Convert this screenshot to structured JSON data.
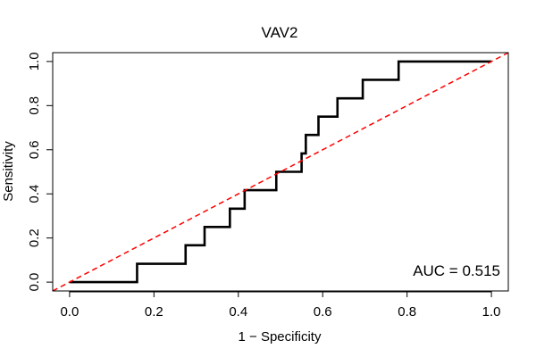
{
  "chart_data": {
    "type": "line",
    "title": "VAV2",
    "xlabel": "1 − Specificity",
    "ylabel": "Sensitivity",
    "xlim": [
      -0.04,
      1.04
    ],
    "ylim": [
      -0.04,
      1.04
    ],
    "x_ticks": [
      0.0,
      0.2,
      0.4,
      0.6,
      0.8,
      1.0
    ],
    "x_tick_labels": [
      "0.0",
      "0.2",
      "0.4",
      "0.6",
      "0.8",
      "1.0"
    ],
    "y_ticks": [
      0.0,
      0.2,
      0.4,
      0.6,
      0.8,
      1.0
    ],
    "y_tick_labels": [
      "0.0",
      "0.2",
      "0.4",
      "0.6",
      "0.8",
      "1.0"
    ],
    "grid": false,
    "annotation": "AUC = 0.515",
    "series": [
      {
        "style": "step",
        "color": "#000000",
        "x": [
          0.0,
          0.16,
          0.16,
          0.275,
          0.275,
          0.32,
          0.32,
          0.38,
          0.38,
          0.415,
          0.415,
          0.49,
          0.49,
          0.55,
          0.55,
          0.56,
          0.56,
          0.59,
          0.59,
          0.635,
          0.635,
          0.695,
          0.695,
          0.78,
          0.78,
          1.0
        ],
        "y": [
          0.0,
          0.0,
          0.083,
          0.083,
          0.167,
          0.167,
          0.25,
          0.25,
          0.333,
          0.333,
          0.417,
          0.417,
          0.5,
          0.5,
          0.583,
          0.583,
          0.667,
          0.667,
          0.75,
          0.75,
          0.833,
          0.833,
          0.917,
          0.917,
          1.0,
          1.0
        ]
      },
      {
        "style": "dashed",
        "color": "#ff0000",
        "x": [
          -0.04,
          1.04
        ],
        "y": [
          -0.04,
          1.04
        ]
      }
    ]
  }
}
